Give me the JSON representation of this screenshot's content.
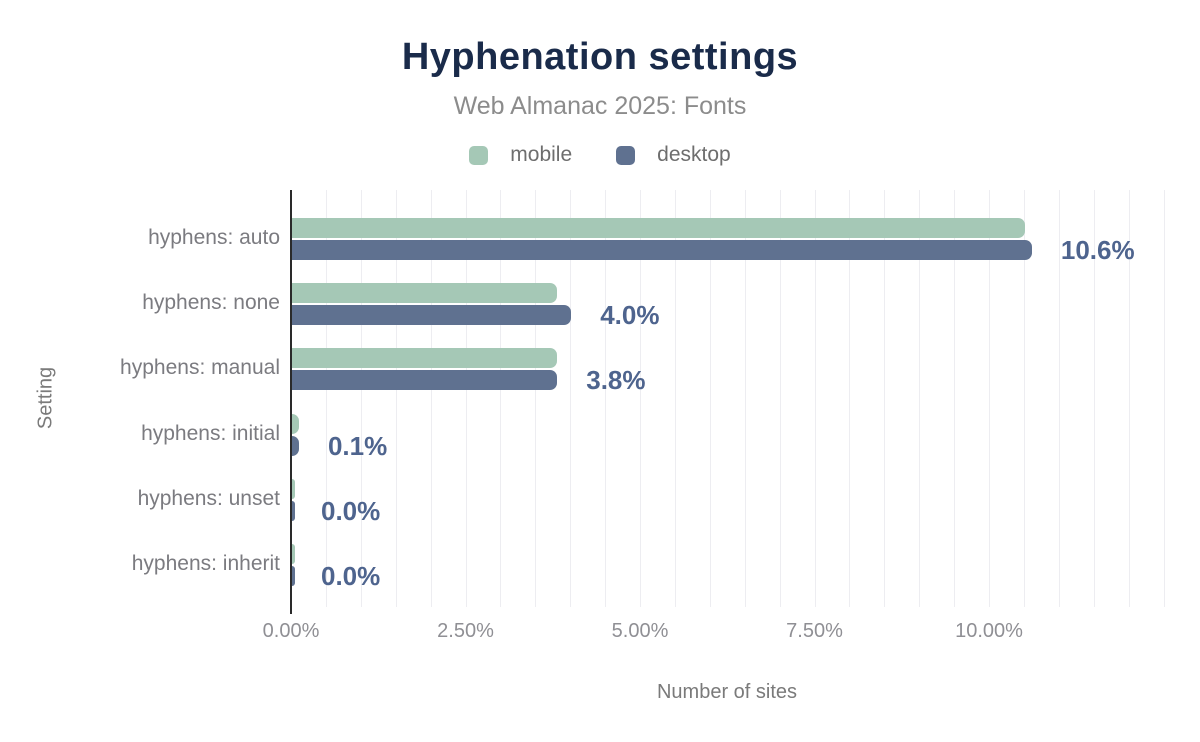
{
  "header": {
    "title": "Hyphenation settings",
    "subtitle": "Web Almanac 2025: Fonts"
  },
  "legend": {
    "items": [
      {
        "label": "mobile",
        "color": "#a5c8b6"
      },
      {
        "label": "desktop",
        "color": "#5f7190"
      }
    ]
  },
  "axes": {
    "x_title": "Number of sites",
    "y_title": "Setting"
  },
  "colors": {
    "title": "#1a2b4a",
    "mobile_bar": "#a5c8b6",
    "desktop_bar": "#5f7190",
    "value_label": "#4e648e",
    "gridline": "#ededf1",
    "axis_line": "#2a2a2a"
  },
  "chart_data": {
    "type": "bar",
    "orientation": "horizontal",
    "title": "Hyphenation settings",
    "subtitle": "Web Almanac 2025: Fonts",
    "xlabel": "Number of sites",
    "ylabel": "Setting",
    "categories": [
      "hyphens: auto",
      "hyphens: none",
      "hyphens: manual",
      "hyphens: initial",
      "hyphens: unset",
      "hyphens: inherit"
    ],
    "series": [
      {
        "name": "mobile",
        "color": "#a5c8b6",
        "values": [
          10.5,
          3.8,
          3.8,
          0.1,
          0.0,
          0.0
        ]
      },
      {
        "name": "desktop",
        "color": "#5f7190",
        "values": [
          10.6,
          4.0,
          3.8,
          0.1,
          0.0,
          0.0
        ]
      }
    ],
    "value_labels": [
      "10.6%",
      "4.0%",
      "3.8%",
      "0.1%",
      "0.0%",
      "0.0%"
    ],
    "x_ticks": [
      "0.00%",
      "2.50%",
      "5.00%",
      "7.50%",
      "10.00%"
    ],
    "x_tick_values": [
      0,
      2.5,
      5,
      7.5,
      10
    ],
    "xlim": [
      0,
      12.5
    ],
    "grid_step": 0.5,
    "grid": true,
    "legend_position": "top"
  }
}
